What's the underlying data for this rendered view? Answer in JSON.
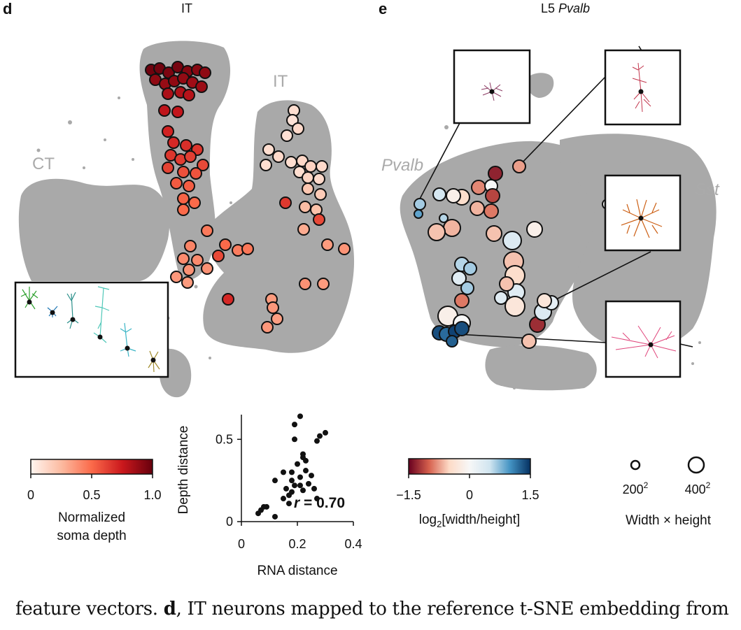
{
  "panel_d": {
    "letter": "d",
    "title": "IT",
    "cluster_labels": [
      "CT",
      "IT"
    ],
    "colorbar": {
      "ticks": [
        "0",
        "0.5",
        "1.0"
      ],
      "label_lines": [
        "Normalized",
        "soma depth"
      ],
      "colors": [
        "#fff5f0",
        "#fcbba1",
        "#fb6a4a",
        "#cb181d",
        "#67000d"
      ]
    }
  },
  "panel_e": {
    "letter": "e",
    "title_prefix": "L5 ",
    "title_italic": "Pvalb",
    "cluster_labels": [
      "Pvalb",
      "Sst"
    ],
    "colorbar": {
      "ticks": [
        "−1.5",
        "0",
        "1.5"
      ],
      "label_prefix": "log",
      "label_sub": "2",
      "label_suffix": "[width/height]",
      "colors": [
        "#67001f",
        "#d6604d",
        "#fddbc7",
        "#f7f7f7",
        "#d1e5f0",
        "#4393c3",
        "#053061"
      ]
    },
    "size_legend": {
      "items": [
        {
          "base": "200",
          "exp": "2"
        },
        {
          "base": "400",
          "exp": "2"
        }
      ],
      "label": "Width × height"
    }
  },
  "chart_data": {
    "type": "scatter",
    "xlabel": "RNA distance",
    "ylabel": "Depth distance",
    "xlim": [
      0,
      0.4
    ],
    "ylim": [
      0,
      0.65
    ],
    "xticks": [
      "0",
      "0.2",
      "0.4"
    ],
    "yticks": [
      "0",
      "0.5"
    ],
    "annotation_r": "r",
    "annotation_value": " = 0.70",
    "points": [
      [
        0.06,
        0.05
      ],
      [
        0.07,
        0.07
      ],
      [
        0.08,
        0.09
      ],
      [
        0.09,
        0.09
      ],
      [
        0.12,
        0.03
      ],
      [
        0.12,
        0.25
      ],
      [
        0.15,
        0.3
      ],
      [
        0.15,
        0.14
      ],
      [
        0.16,
        0.2
      ],
      [
        0.17,
        0.11
      ],
      [
        0.17,
        0.16
      ],
      [
        0.18,
        0.18
      ],
      [
        0.18,
        0.25
      ],
      [
        0.18,
        0.3
      ],
      [
        0.19,
        0.22
      ],
      [
        0.19,
        0.59
      ],
      [
        0.19,
        0.5
      ],
      [
        0.2,
        0.35
      ],
      [
        0.21,
        0.64
      ],
      [
        0.21,
        0.27
      ],
      [
        0.21,
        0.22
      ],
      [
        0.22,
        0.19
      ],
      [
        0.22,
        0.39
      ],
      [
        0.22,
        0.41
      ],
      [
        0.23,
        0.37
      ],
      [
        0.23,
        0.31
      ],
      [
        0.24,
        0.23
      ],
      [
        0.25,
        0.28
      ],
      [
        0.26,
        0.2
      ],
      [
        0.27,
        0.14
      ],
      [
        0.27,
        0.49
      ],
      [
        0.28,
        0.52
      ],
      [
        0.3,
        0.54
      ]
    ]
  },
  "caption": {
    "before": "feature vectors. ",
    "bold": "d",
    "after": ", IT neurons mapped to the reference t-SNE embedding from"
  }
}
